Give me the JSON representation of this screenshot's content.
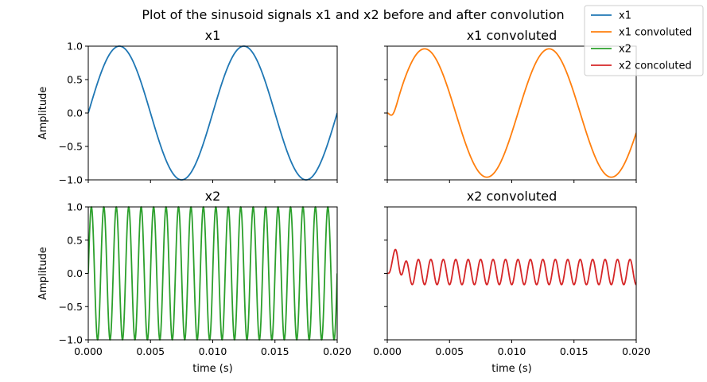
{
  "figure": {
    "title": "Plot of the sinusoid signals x1 and x2 before and after convolution"
  },
  "legend": {
    "placement": "top-right",
    "entries": [
      {
        "label": "x1",
        "color": "#1f77b4"
      },
      {
        "label": "x1 convoluted",
        "color": "#ff7f0e"
      },
      {
        "label": "x2",
        "color": "#2ca02c"
      },
      {
        "label": "x2 concoluted",
        "color": "#d62728"
      }
    ]
  },
  "chart_data": [
    {
      "type": "line",
      "title": "x1",
      "xlabel": "",
      "ylabel": "Amplitude",
      "xlim": [
        0.0,
        0.02
      ],
      "ylim": [
        -1.0,
        1.0
      ],
      "x_ticks": [
        0.0,
        0.005,
        0.01,
        0.015,
        0.02
      ],
      "x_tick_labels": [],
      "y_ticks": [
        -1.0,
        -0.5,
        0.0,
        0.5,
        1.0
      ],
      "y_tick_labels": [
        "−1.0",
        "−0.5",
        "0.0",
        "0.5",
        "1.0"
      ],
      "series": [
        {
          "color": "#1f77b4",
          "signal": {
            "kind": "sine",
            "freq_hz": 100,
            "amplitude": 1.0
          }
        }
      ]
    },
    {
      "type": "line",
      "title": "x1 convoluted",
      "xlabel": "",
      "ylabel": "",
      "xlim": [
        0.0,
        0.02
      ],
      "ylim": [
        -1.0,
        1.0
      ],
      "x_ticks": [
        0.0,
        0.005,
        0.01,
        0.015,
        0.02
      ],
      "x_tick_labels": [],
      "y_ticks": [
        -1.0,
        -0.5,
        0.0,
        0.5,
        1.0
      ],
      "y_tick_labels": [],
      "series": [
        {
          "color": "#ff7f0e",
          "signal": {
            "kind": "filtered_sine",
            "freq_hz": 100,
            "amplitude": 0.96,
            "phase_lag_s": 0.0005,
            "settle_s": 0.0008
          }
        }
      ]
    },
    {
      "type": "line",
      "title": "x2",
      "xlabel": "time (s)",
      "ylabel": "Amplitude",
      "xlim": [
        0.0,
        0.02
      ],
      "ylim": [
        -1.0,
        1.0
      ],
      "x_ticks": [
        0.0,
        0.005,
        0.01,
        0.015,
        0.02
      ],
      "x_tick_labels": [
        "0.000",
        "0.005",
        "0.010",
        "0.015",
        "0.020"
      ],
      "y_ticks": [
        -1.0,
        -0.5,
        0.0,
        0.5,
        1.0
      ],
      "y_tick_labels": [
        "−1.0",
        "−0.5",
        "0.0",
        "0.5",
        "1.0"
      ],
      "series": [
        {
          "color": "#2ca02c",
          "signal": {
            "kind": "sine",
            "freq_hz": 1000,
            "amplitude": 1.0
          }
        }
      ]
    },
    {
      "type": "line",
      "title": "x2 convoluted",
      "xlabel": "time (s)",
      "ylabel": "",
      "xlim": [
        0.0,
        0.02
      ],
      "ylim": [
        -1.0,
        1.0
      ],
      "x_ticks": [
        0.0,
        0.005,
        0.01,
        0.015,
        0.02
      ],
      "x_tick_labels": [
        "0.000",
        "0.005",
        "0.010",
        "0.015",
        "0.020"
      ],
      "y_ticks": [
        -1.0,
        -0.5,
        0.0,
        0.5,
        1.0
      ],
      "y_tick_labels": [],
      "series": [
        {
          "color": "#d62728",
          "signal": {
            "kind": "filtered_sine",
            "freq_hz": 1000,
            "amplitude": 0.19,
            "offset": 0.02,
            "phase_lag_s": 0.00025,
            "settle_s": 0.0005,
            "overshoot": 0.34
          }
        }
      ]
    }
  ]
}
